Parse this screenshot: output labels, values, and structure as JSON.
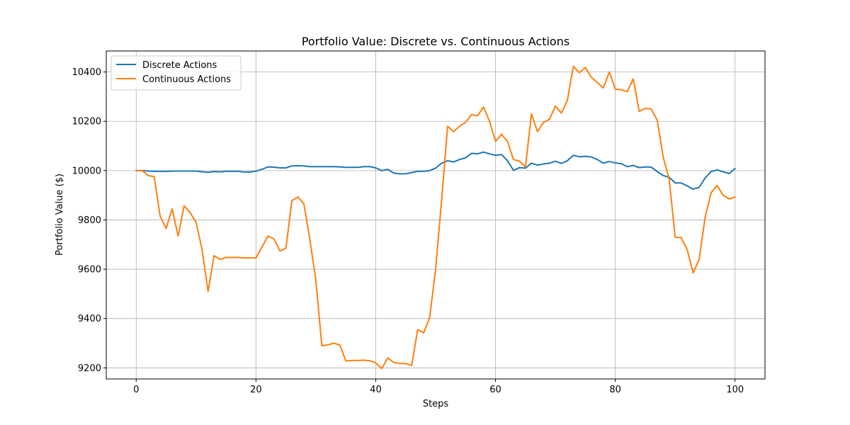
{
  "chart_data": {
    "type": "line",
    "title": "Portfolio Value: Discrete vs. Continuous Actions",
    "xlabel": "Steps",
    "ylabel": "Portfolio Value ($)",
    "xlim": [
      -5,
      105
    ],
    "ylim": [
      9155,
      10485
    ],
    "xticks": [
      0,
      20,
      40,
      60,
      80,
      100
    ],
    "yticks": [
      9200,
      9400,
      9600,
      9800,
      10000,
      10200,
      10400
    ],
    "xtick_labels": [
      "0",
      "20",
      "40",
      "60",
      "80",
      "100"
    ],
    "ytick_labels": [
      "9200",
      "9400",
      "9600",
      "9800",
      "10000",
      "10200",
      "10400"
    ],
    "grid": true,
    "legend_position": "top-left",
    "series": [
      {
        "name": "Discrete Actions",
        "color": "#1f77b4",
        "x": [
          0,
          1,
          2,
          3,
          4,
          5,
          6,
          7,
          8,
          9,
          10,
          11,
          12,
          13,
          14,
          15,
          16,
          17,
          18,
          19,
          20,
          21,
          22,
          23,
          24,
          25,
          26,
          27,
          28,
          29,
          30,
          31,
          32,
          33,
          34,
          35,
          36,
          37,
          38,
          39,
          40,
          41,
          42,
          43,
          44,
          45,
          46,
          47,
          48,
          49,
          50,
          51,
          52,
          53,
          54,
          55,
          56,
          57,
          58,
          59,
          60,
          61,
          62,
          63,
          64,
          65,
          66,
          67,
          68,
          69,
          70,
          71,
          72,
          73,
          74,
          75,
          76,
          77,
          78,
          79,
          80,
          81,
          82,
          83,
          84,
          85,
          86,
          87,
          88,
          89,
          90,
          91,
          92,
          93,
          94,
          95,
          96,
          97,
          98,
          99,
          100
        ],
        "values": [
          10000,
          10000,
          9998,
          9997,
          9997,
          9997,
          9998,
          9998,
          9998,
          9998,
          9998,
          9995,
          9993,
          9996,
          9995,
          9997,
          9997,
          9997,
          9994,
          9994,
          9998,
          10005,
          10015,
          10014,
          10011,
          10011,
          10019,
          10020,
          10019,
          10016,
          10016,
          10016,
          10016,
          10016,
          10015,
          10013,
          10013,
          10013,
          10016,
          10016,
          10011,
          10000,
          10005,
          9990,
          9987,
          9987,
          9992,
          9997,
          9997,
          10000,
          10010,
          10030,
          10040,
          10035,
          10045,
          10052,
          10070,
          10068,
          10075,
          10068,
          10062,
          10065,
          10040,
          10001,
          10012,
          10010,
          10030,
          10022,
          10027,
          10030,
          10038,
          10029,
          10040,
          10062,
          10056,
          10058,
          10055,
          10045,
          10030,
          10037,
          10031,
          10028,
          10016,
          10021,
          10012,
          10015,
          10014,
          9996,
          9980,
          9973,
          9950,
          9950,
          9938,
          9925,
          9932,
          9970,
          9996,
          10003,
          9995,
          9988,
          10008
        ]
      },
      {
        "name": "Continuous Actions",
        "color": "#ff7f0e",
        "x": [
          0,
          1,
          2,
          3,
          4,
          5,
          6,
          7,
          8,
          9,
          10,
          11,
          12,
          13,
          14,
          15,
          16,
          17,
          18,
          19,
          20,
          21,
          22,
          23,
          24,
          25,
          26,
          27,
          28,
          29,
          30,
          31,
          32,
          33,
          34,
          35,
          36,
          37,
          38,
          39,
          40,
          41,
          42,
          43,
          44,
          45,
          46,
          47,
          48,
          49,
          50,
          51,
          52,
          53,
          54,
          55,
          56,
          57,
          58,
          59,
          60,
          61,
          62,
          63,
          64,
          65,
          66,
          67,
          68,
          69,
          70,
          71,
          72,
          73,
          74,
          75,
          76,
          77,
          78,
          79,
          80,
          81,
          82,
          83,
          84,
          85,
          86,
          87,
          88,
          89,
          90,
          91,
          92,
          93,
          94,
          95,
          96,
          97,
          98,
          99,
          100
        ],
        "values": [
          10000,
          10000,
          9980,
          9975,
          9815,
          9765,
          9845,
          9735,
          9857,
          9830,
          9790,
          9680,
          9510,
          9655,
          9640,
          9648,
          9648,
          9648,
          9646,
          9646,
          9646,
          9690,
          9735,
          9723,
          9674,
          9685,
          9878,
          9893,
          9865,
          9720,
          9555,
          9290,
          9293,
          9300,
          9293,
          9228,
          9230,
          9230,
          9231,
          9229,
          9220,
          9197,
          9240,
          9222,
          9218,
          9217,
          9210,
          9355,
          9342,
          9403,
          9600,
          9880,
          10180,
          10158,
          10180,
          10195,
          10227,
          10222,
          10258,
          10200,
          10118,
          10148,
          10118,
          10045,
          10038,
          10015,
          10230,
          10158,
          10195,
          10208,
          10262,
          10233,
          10285,
          10423,
          10397,
          10418,
          10378,
          10357,
          10335,
          10400,
          10330,
          10328,
          10320,
          10372,
          10240,
          10252,
          10250,
          10205,
          10055,
          9965,
          9730,
          9728,
          9680,
          9585,
          9640,
          9810,
          9910,
          9940,
          9900,
          9885,
          9893
        ]
      }
    ]
  }
}
